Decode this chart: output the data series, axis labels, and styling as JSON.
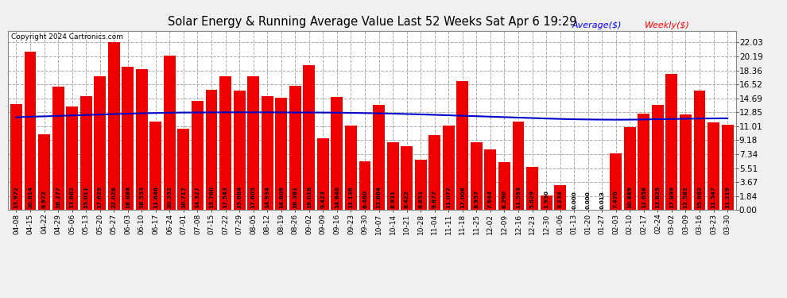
{
  "title": "Solar Energy & Running Average Value Last 52 Weeks Sat Apr 6 19:29",
  "copyright": "Copyright 2024 Cartronics.com",
  "legend_avg": "Average($)",
  "legend_weekly": "Weekly($)",
  "bar_color": "#ee0000",
  "avg_line_color": "#0000cc",
  "background_color": "#f0f0f0",
  "plot_bg_color": "#ffffff",
  "yticks": [
    0.0,
    1.84,
    3.67,
    5.51,
    7.34,
    9.18,
    11.01,
    12.85,
    14.69,
    16.52,
    18.36,
    20.19,
    22.03
  ],
  "categories": [
    "04-08",
    "04-15",
    "04-22",
    "04-29",
    "05-06",
    "05-13",
    "05-20",
    "05-27",
    "06-03",
    "06-10",
    "06-17",
    "06-24",
    "07-01",
    "07-08",
    "07-15",
    "07-22",
    "07-29",
    "08-05",
    "08-12",
    "08-19",
    "08-26",
    "09-02",
    "09-09",
    "09-16",
    "09-23",
    "09-30",
    "10-07",
    "10-14",
    "10-21",
    "10-28",
    "11-04",
    "11-11",
    "11-18",
    "11-25",
    "12-02",
    "12-09",
    "12-16",
    "12-23",
    "12-30",
    "01-06",
    "01-13",
    "01-20",
    "01-27",
    "02-03",
    "02-10",
    "02-17",
    "02-24",
    "03-02",
    "03-09",
    "03-16",
    "03-23",
    "03-30"
  ],
  "weekly_values": [
    13.972,
    20.814,
    9.972,
    16.277,
    13.662,
    15.011,
    17.629,
    22.028,
    18.884,
    18.553,
    11.646,
    20.352,
    10.717,
    14.327,
    15.76,
    17.543,
    15.684,
    17.605,
    14.934,
    14.809,
    16.381,
    19.018,
    9.423,
    14.84,
    11.136,
    6.46,
    13.864,
    8.931,
    8.422,
    6.651,
    9.877,
    11.077,
    17.006,
    8.957,
    7.944,
    6.29,
    11.593,
    5.629,
    1.93,
    3.234,
    0.0,
    0.0,
    0.013,
    7.47,
    10.889,
    12.656,
    13.825,
    17.899,
    12.582,
    15.662,
    11.547,
    11.219
  ],
  "avg_values": [
    12.2,
    12.28,
    12.32,
    12.38,
    12.44,
    12.5,
    12.56,
    12.62,
    12.67,
    12.72,
    12.76,
    12.8,
    12.82,
    12.83,
    12.84,
    12.85,
    12.85,
    12.85,
    12.85,
    12.84,
    12.83,
    12.83,
    12.82,
    12.81,
    12.78,
    12.75,
    12.72,
    12.68,
    12.63,
    12.58,
    12.52,
    12.46,
    12.4,
    12.34,
    12.28,
    12.22,
    12.16,
    12.1,
    12.04,
    11.98,
    11.94,
    11.91,
    11.89,
    11.88,
    11.89,
    11.91,
    11.94,
    11.97,
    12.0,
    12.03,
    12.05,
    12.06
  ]
}
